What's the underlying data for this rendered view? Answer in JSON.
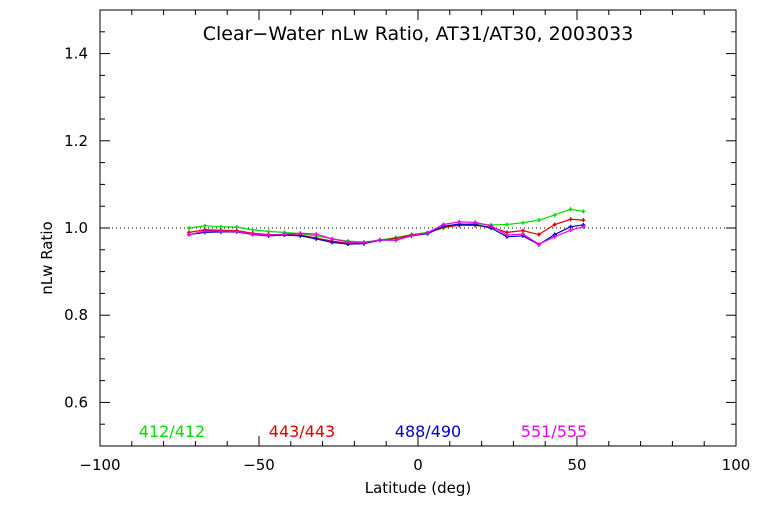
{
  "chart_data": {
    "type": "line",
    "title": "Clear−Water nLw Ratio, AT31/AT30, 2003033",
    "xlabel": "Latitude (deg)",
    "ylabel": "nLw Ratio",
    "xlim": [
      -100,
      100
    ],
    "ylim": [
      0.5,
      1.5
    ],
    "x_ticks": [
      -100,
      -50,
      0,
      50,
      100
    ],
    "x_tick_labels": [
      "−100",
      "−50",
      "0",
      "50",
      "100"
    ],
    "y_ticks": [
      0.6,
      0.8,
      1.0,
      1.2,
      1.4
    ],
    "y_tick_labels": [
      "0.6",
      "0.8",
      "1.0",
      "1.2",
      "1.4"
    ],
    "x_minor_step": 10,
    "y_minor_step": 0.05,
    "reference_line": {
      "y": 1.0,
      "style": "dotted"
    },
    "grid": false,
    "legend_position": "bottom",
    "x": [
      -72,
      -67,
      -62,
      -57,
      -52,
      -47,
      -42,
      -37,
      -32,
      -27,
      -22,
      -17,
      -12,
      -7,
      -2,
      3,
      8,
      13,
      18,
      23,
      28,
      33,
      38,
      43,
      48,
      52
    ],
    "series": [
      {
        "name": "412/412",
        "color": "#00dd00",
        "values": [
          1.0,
          1.005,
          1.003,
          1.002,
          0.996,
          0.992,
          0.99,
          0.987,
          0.982,
          0.975,
          0.97,
          0.968,
          0.972,
          0.978,
          0.985,
          0.99,
          1.0,
          1.008,
          1.01,
          1.007,
          1.008,
          1.012,
          1.018,
          1.03,
          1.043,
          1.038
        ]
      },
      {
        "name": "443/443",
        "color": "#dd0000",
        "values": [
          0.99,
          0.996,
          0.995,
          0.994,
          0.988,
          0.985,
          0.985,
          0.984,
          0.977,
          0.97,
          0.965,
          0.965,
          0.972,
          0.976,
          0.984,
          0.988,
          1.002,
          1.006,
          1.006,
          1.002,
          0.99,
          0.994,
          0.985,
          1.008,
          1.02,
          1.018
        ]
      },
      {
        "name": "488/490",
        "color": "#0000cc",
        "values": [
          0.985,
          0.99,
          0.991,
          0.991,
          0.985,
          0.982,
          0.984,
          0.982,
          0.975,
          0.967,
          0.963,
          0.964,
          0.972,
          0.972,
          0.982,
          0.987,
          1.004,
          1.009,
          1.008,
          1.0,
          0.98,
          0.982,
          0.962,
          0.985,
          1.003,
          1.007
        ]
      },
      {
        "name": "551/555",
        "color": "#ee00ee",
        "values": [
          0.985,
          0.993,
          0.993,
          0.992,
          0.986,
          0.984,
          0.986,
          0.988,
          0.986,
          0.975,
          0.968,
          0.966,
          0.973,
          0.972,
          0.982,
          0.989,
          1.008,
          1.014,
          1.013,
          1.005,
          0.984,
          0.986,
          0.963,
          0.98,
          0.995,
          1.003
        ]
      }
    ]
  }
}
